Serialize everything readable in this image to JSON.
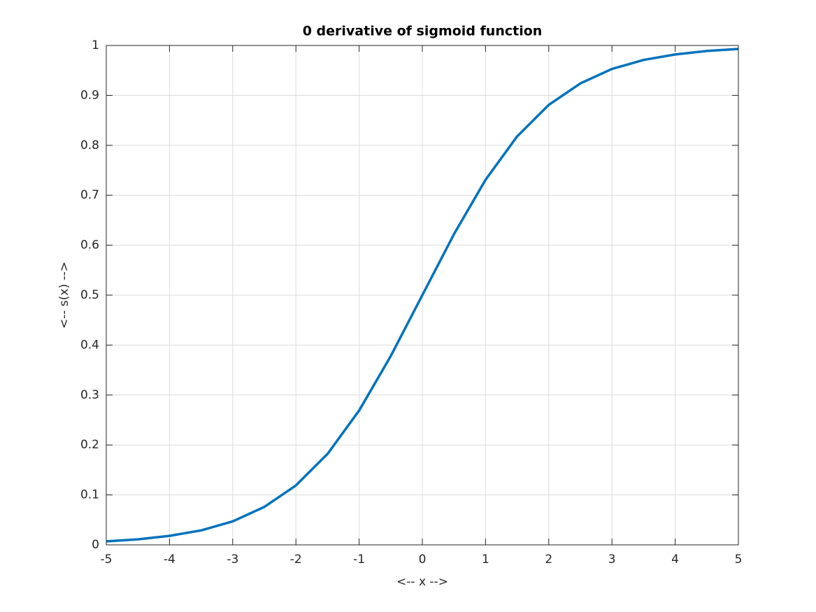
{
  "chart_data": {
    "type": "line",
    "title": "0 derivative of sigmoid function",
    "x_label": "<-- x -->",
    "y_label": "<-- s(x) -->",
    "x": [
      -5,
      -4.5,
      -4,
      -3.5,
      -3,
      -2.5,
      -2,
      -1.5,
      -1,
      -0.5,
      0,
      0.5,
      1,
      1.5,
      2,
      2.5,
      3,
      3.5,
      4,
      4.5,
      5
    ],
    "series": [
      {
        "name": "s(x)",
        "color": "#0072bd",
        "values": [
          0.007,
          0.011,
          0.018,
          0.029,
          0.047,
          0.076,
          0.119,
          0.182,
          0.269,
          0.378,
          0.5,
          0.622,
          0.731,
          0.818,
          0.881,
          0.924,
          0.953,
          0.971,
          0.982,
          0.989,
          0.993
        ]
      }
    ],
    "xlim": [
      -5,
      5
    ],
    "xticks": [
      -5,
      -4,
      -3,
      -2,
      -1,
      0,
      1,
      2,
      3,
      4,
      5
    ],
    "ylim": [
      0,
      1
    ],
    "yticks": [
      0,
      0.1,
      0.2,
      0.3,
      0.4,
      0.5,
      0.6,
      0.7,
      0.8,
      0.9,
      1
    ],
    "grid": true
  }
}
